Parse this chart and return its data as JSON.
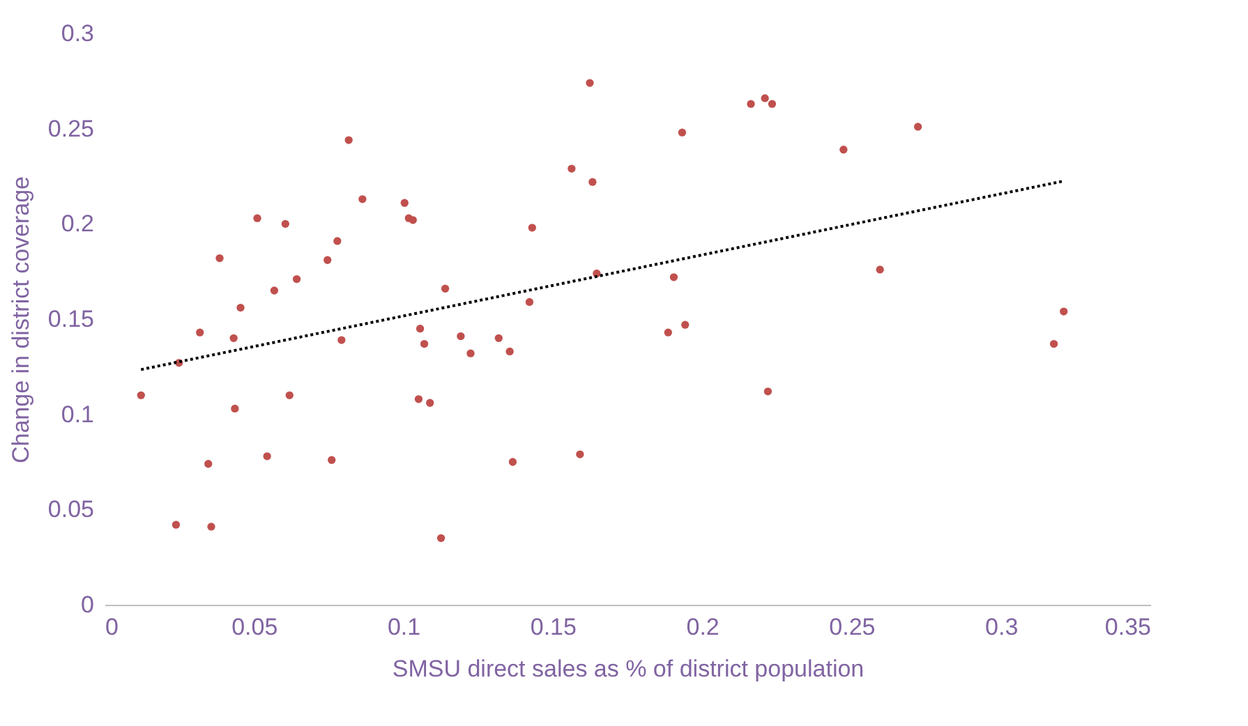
{
  "chart_data": {
    "type": "scatter",
    "xlabel": "SMSU direct sales as % of district population",
    "ylabel": "Change in district coverage",
    "xlim": [
      0,
      0.35
    ],
    "xticks": [
      0,
      0.05,
      0.1,
      0.15,
      0.2,
      0.25,
      0.3,
      0.35
    ],
    "ylim": [
      0,
      0.3
    ],
    "yticks": [
      0,
      0.05,
      0.1,
      0.15,
      0.2,
      0.25,
      0.3
    ],
    "grid": false,
    "marker": "circle",
    "series": [
      {
        "color": "#c0504d",
        "x": [
          0.0122,
          0.0249,
          0.0239,
          0.0319,
          0.0347,
          0.0357,
          0.0385,
          0.0432,
          0.0436,
          0.0455,
          0.0511,
          0.0544,
          0.0568,
          0.0605,
          0.0619,
          0.0643,
          0.0746,
          0.076,
          0.0779,
          0.0793,
          0.0817,
          0.0863,
          0.1004,
          0.1018,
          0.1032,
          0.1051,
          0.1056,
          0.107,
          0.1089,
          0.1126,
          0.114,
          0.1192,
          0.1225,
          0.1319,
          0.1356,
          0.1366,
          0.1422,
          0.1431,
          0.1563,
          0.1591,
          0.1624,
          0.1633,
          0.1647,
          0.1886,
          0.1905,
          0.1933,
          0.1943,
          0.2163,
          0.221,
          0.222,
          0.2234,
          0.2473,
          0.2595,
          0.2722,
          0.3177,
          0.321
        ],
        "values": [
          0.11,
          0.127,
          0.042,
          0.143,
          0.074,
          0.041,
          0.182,
          0.14,
          0.103,
          0.156,
          0.203,
          0.078,
          0.165,
          0.2,
          0.11,
          0.171,
          0.181,
          0.076,
          0.191,
          0.139,
          0.244,
          0.213,
          0.211,
          0.203,
          0.202,
          0.108,
          0.145,
          0.137,
          0.106,
          0.035,
          0.166,
          0.141,
          0.132,
          0.14,
          0.133,
          0.075,
          0.159,
          0.198,
          0.229,
          0.079,
          0.274,
          0.222,
          0.174,
          0.143,
          0.172,
          0.248,
          0.147,
          0.263,
          0.266,
          0.112,
          0.263,
          0.239,
          0.176,
          0.251,
          0.137,
          0.154
        ]
      },
      {
        "type": "line",
        "marker": "none",
        "color": "#000000",
        "line_style": "dotted",
        "x": [
          0.0122,
          0.321
        ],
        "values": [
          0.1235,
          0.2225
        ]
      }
    ]
  }
}
